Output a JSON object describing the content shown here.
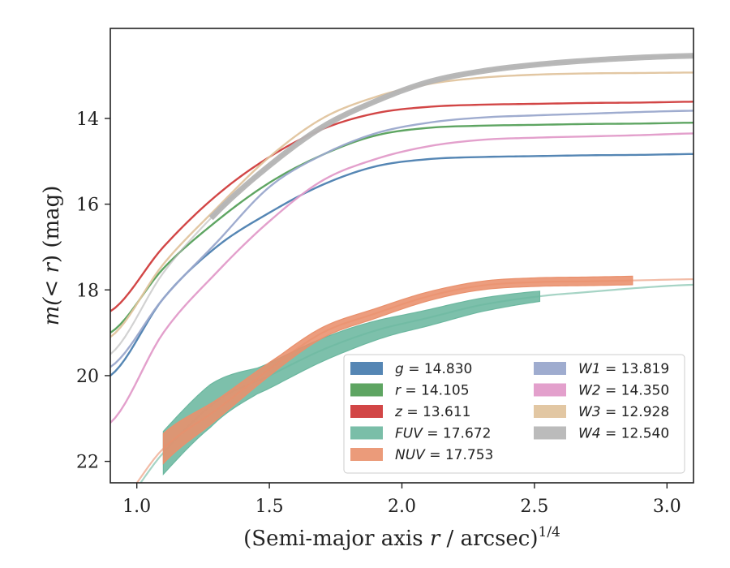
{
  "chart_data": {
    "type": "line",
    "xlabel_prefix": "(Semi-major axis ",
    "xlabel_var": "r",
    "xlabel_mid": " / arcsec)",
    "xlabel_sup": "1/4",
    "ylabel_prefix": "m(",
    "ylabel_var": "< r",
    "ylabel_suffix": ") (mag)",
    "xlim": [
      0.9,
      3.1
    ],
    "ylim": [
      22.5,
      11.9
    ],
    "y_inverted": true,
    "xticks": [
      "1.0",
      "1.5",
      "2.0",
      "2.5",
      "3.0"
    ],
    "yticks": [
      "14",
      "16",
      "18",
      "20",
      "22"
    ],
    "legend_placement": "lower-right",
    "legend_columns": 2,
    "series": [
      {
        "name": "g",
        "value": "14.830",
        "color": "#4c7fb0",
        "kind": "thin",
        "x": [
          0.9,
          1.1,
          1.3,
          1.5,
          1.7,
          1.9,
          2.1,
          2.3,
          2.5,
          2.7,
          2.9,
          3.1
        ],
        "y": [
          20.0,
          18.2,
          17.0,
          16.2,
          15.55,
          15.12,
          14.95,
          14.9,
          14.88,
          14.86,
          14.85,
          14.83
        ]
      },
      {
        "name": "r",
        "value": "14.105",
        "color": "#55a05a",
        "kind": "thin",
        "x": [
          0.9,
          1.1,
          1.3,
          1.5,
          1.7,
          1.9,
          2.1,
          2.3,
          2.5,
          2.7,
          2.9,
          3.1
        ],
        "y": [
          19.0,
          17.5,
          16.4,
          15.5,
          14.85,
          14.4,
          14.22,
          14.17,
          14.15,
          14.13,
          14.12,
          14.1
        ]
      },
      {
        "name": "z",
        "value": "13.611",
        "color": "#d03c3c",
        "kind": "thin",
        "x": [
          0.9,
          1.1,
          1.3,
          1.5,
          1.7,
          1.9,
          2.1,
          2.3,
          2.5,
          2.7,
          2.9,
          3.1
        ],
        "y": [
          18.5,
          17.0,
          15.8,
          14.9,
          14.25,
          13.88,
          13.73,
          13.68,
          13.66,
          13.64,
          13.63,
          13.61
        ]
      },
      {
        "name": "FUV",
        "value": "17.672",
        "color": "#6bb79f",
        "kind": "band",
        "x": [
          0.9,
          1.1,
          1.3,
          1.5,
          1.7,
          1.9,
          2.1,
          2.3,
          2.52,
          2.7,
          2.9,
          3.1
        ],
        "y": [
          23.3,
          21.8,
          20.6,
          20.0,
          19.4,
          18.95,
          18.65,
          18.35,
          18.15,
          18.05,
          17.95,
          17.88
        ],
        "band_range": [
          1.1,
          2.52
        ],
        "band_halfwidth": [
          0.5,
          0.5,
          0.3,
          0.28,
          0.25,
          0.2,
          0.18,
          0.15,
          0.12
        ]
      },
      {
        "name": "NUV",
        "value": "17.753",
        "color": "#e9906c",
        "kind": "band",
        "x": [
          0.9,
          1.1,
          1.3,
          1.5,
          1.7,
          1.9,
          2.1,
          2.3,
          2.5,
          2.7,
          2.87,
          3.1
        ],
        "y": [
          23.2,
          21.7,
          20.8,
          19.85,
          19.0,
          18.55,
          18.15,
          17.9,
          17.82,
          17.8,
          17.78,
          17.75
        ],
        "band_range": [
          1.1,
          2.87
        ],
        "band_halfwidth": [
          0.35,
          0.22,
          0.14,
          0.12,
          0.11,
          0.1,
          0.1,
          0.1,
          0.1
        ]
      },
      {
        "name": "W1",
        "value": "13.819",
        "color": "#9aa8cc",
        "kind": "thin",
        "x": [
          0.9,
          1.1,
          1.3,
          1.5,
          1.7,
          1.9,
          2.1,
          2.3,
          2.5,
          2.7,
          2.9,
          3.1
        ],
        "y": [
          19.8,
          18.2,
          16.9,
          15.6,
          14.85,
          14.35,
          14.1,
          13.98,
          13.93,
          13.89,
          13.85,
          13.82
        ]
      },
      {
        "name": "W2",
        "value": "14.350",
        "color": "#e29bc9",
        "kind": "thin",
        "x": [
          0.9,
          1.1,
          1.3,
          1.5,
          1.7,
          1.9,
          2.1,
          2.3,
          2.5,
          2.7,
          2.9,
          3.1
        ],
        "y": [
          21.1,
          19.0,
          17.6,
          16.4,
          15.45,
          14.95,
          14.65,
          14.5,
          14.45,
          14.42,
          14.39,
          14.35
        ]
      },
      {
        "name": "W3",
        "value": "12.928",
        "color": "#e0c49e",
        "kind": "thin",
        "x": [
          0.9,
          1.1,
          1.3,
          1.5,
          1.7,
          1.9,
          2.1,
          2.3,
          2.5,
          2.7,
          2.9,
          3.1
        ],
        "y": [
          19.1,
          17.4,
          16.1,
          14.9,
          14.0,
          13.5,
          13.2,
          13.05,
          12.98,
          12.95,
          12.94,
          12.93
        ]
      },
      {
        "name": "W4",
        "value": "12.540",
        "color": "#b4b4b4",
        "kind": "thick",
        "x": [
          0.9,
          1.1,
          1.3,
          1.5,
          1.7,
          1.9,
          2.1,
          2.3,
          2.5,
          2.7,
          2.9,
          3.1
        ],
        "y": [
          19.5,
          17.6,
          16.2,
          15.1,
          14.2,
          13.6,
          13.15,
          12.9,
          12.75,
          12.65,
          12.58,
          12.54
        ],
        "thick_range": [
          1.28,
          3.1
        ]
      }
    ]
  }
}
